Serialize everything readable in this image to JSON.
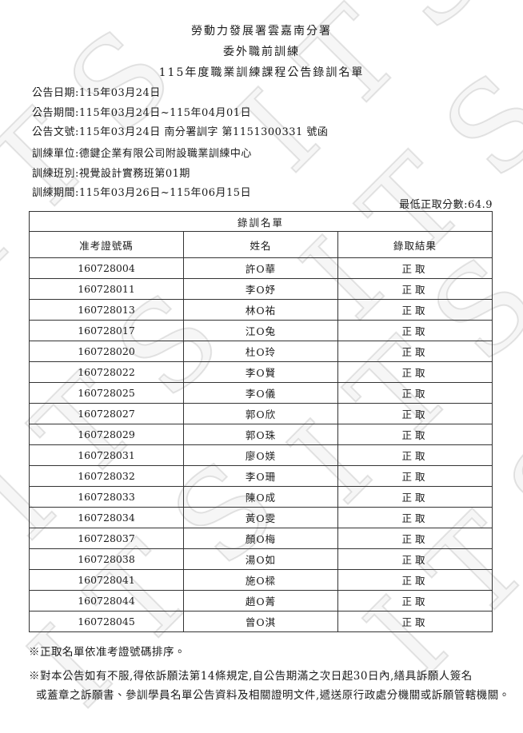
{
  "page": {
    "title_lines": [
      "勞動力發展署雲嘉南分署",
      "委外職前訓練",
      "115年度職業訓練課程公告錄訓名單"
    ]
  },
  "announcement": {
    "lines": [
      "公告日期:115年03月24日",
      "公告期間:115年03月24日~115年04月01日",
      "公告文號:115年03月24日 南分署訓字 第1151300331 號函"
    ]
  },
  "training": {
    "lines": [
      "訓練單位:德鍵企業有限公司附設職業訓練中心",
      "訓練班別:視覺設計實務班第01期",
      "訓練期間:115年03月26日~115年06月15日"
    ]
  },
  "score": {
    "text": "最低正取分數:64.9"
  },
  "table": {
    "caption": "錄訓名單",
    "columns": [
      "准考證號碼",
      "姓名",
      "錄取結果"
    ],
    "rows": [
      [
        "160728004",
        "許O華",
        "正取"
      ],
      [
        "160728011",
        "李O妤",
        "正取"
      ],
      [
        "160728013",
        "林O祐",
        "正取"
      ],
      [
        "160728017",
        "江O兔",
        "正取"
      ],
      [
        "160728020",
        "杜O玲",
        "正取"
      ],
      [
        "160728022",
        "李O賢",
        "正取"
      ],
      [
        "160728025",
        "李O儀",
        "正取"
      ],
      [
        "160728027",
        "郭O欣",
        "正取"
      ],
      [
        "160728029",
        "郭O珠",
        "正取"
      ],
      [
        "160728031",
        "廖O媄",
        "正取"
      ],
      [
        "160728032",
        "李O珊",
        "正取"
      ],
      [
        "160728033",
        "陳O成",
        "正取"
      ],
      [
        "160728034",
        "黃O雯",
        "正取"
      ],
      [
        "160728037",
        "顏O梅",
        "正取"
      ],
      [
        "160728038",
        "湯O如",
        "正取"
      ],
      [
        "160728041",
        "施O樑",
        "正取"
      ],
      [
        "160728044",
        "趙O菁",
        "正取"
      ],
      [
        "160728045",
        "曾O淇",
        "正取"
      ]
    ]
  },
  "notes": {
    "sort_note": "※正取名單依准考證號碼排序。",
    "appeal_line1": "※對本公告如有不服,得依訴願法第14條規定,自公告期滿之次日起30日內,繕具訴願人簽名",
    "appeal_line2": "或蓋章之訴願書、參訓學員名單公告資料及相關證明文件,遞送原行政處分機關或訴願管轄機關。"
  },
  "watermark": {
    "text": "ITS"
  }
}
